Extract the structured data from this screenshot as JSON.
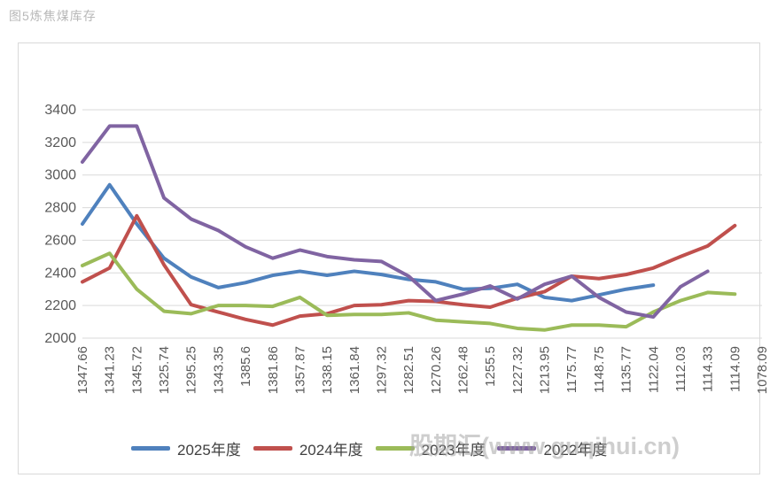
{
  "page_title": "图5炼焦煤库存",
  "watermark": "股期汇(www.guqihui.cn)",
  "colors": {
    "grid": "#d9d9d9",
    "axis_text": "#595959",
    "border": "#d9d9d9",
    "title_text": "#b8b8b8"
  },
  "chart_data": {
    "type": "line",
    "title": "图5炼焦煤库存",
    "xlabel": "",
    "ylabel": "",
    "ylim": [
      2000,
      3400
    ],
    "ytick_step": 200,
    "yticks": [
      2000,
      2200,
      2400,
      2600,
      2800,
      3000,
      3200,
      3400
    ],
    "grid": "horizontal",
    "legend_position": "bottom",
    "categories": [
      "1347.66",
      "1341.23",
      "1345.72",
      "1325.74",
      "1295.25",
      "1343.35",
      "1385.6",
      "1381.86",
      "1357.87",
      "1338.15",
      "1361.84",
      "1297.32",
      "1282.51",
      "1270.26",
      "1262.48",
      "1255.5",
      "1227.32",
      "1213.95",
      "1175.77",
      "1148.75",
      "1135.77",
      "1122.04",
      "1112.03",
      "1114.33",
      "1114.09",
      "1078.09"
    ],
    "series": [
      {
        "name": "2025年度",
        "color": "#4F81BD",
        "values": [
          2700,
          2940,
          2700,
          2490,
          2375,
          2310,
          2340,
          2385,
          2410,
          2385,
          2410,
          2390,
          2360,
          2345,
          2300,
          2305,
          2330,
          2250,
          2230,
          2265,
          2300,
          2325,
          null,
          null,
          null,
          null
        ]
      },
      {
        "name": "2024年度",
        "color": "#C0504D",
        "values": [
          2345,
          2430,
          2750,
          2450,
          2205,
          2160,
          2115,
          2080,
          2135,
          2150,
          2200,
          2205,
          2230,
          2225,
          2205,
          2190,
          2245,
          2285,
          2380,
          2365,
          2390,
          2430,
          2500,
          2565,
          2690,
          null
        ]
      },
      {
        "name": "2023年度",
        "color": "#9BBB59",
        "values": [
          2445,
          2520,
          2300,
          2165,
          2150,
          2200,
          2200,
          2195,
          2250,
          2140,
          2145,
          2145,
          2155,
          2110,
          2100,
          2090,
          2060,
          2050,
          2080,
          2080,
          2070,
          2160,
          2230,
          2280,
          2270,
          null
        ]
      },
      {
        "name": "2022年度",
        "color": "#8064A2",
        "values": [
          3080,
          3300,
          3300,
          2860,
          2730,
          2660,
          2560,
          2490,
          2540,
          2500,
          2480,
          2470,
          2380,
          2230,
          2270,
          2320,
          2240,
          2330,
          2380,
          2250,
          2160,
          2130,
          2315,
          2410,
          null,
          null
        ]
      }
    ]
  }
}
